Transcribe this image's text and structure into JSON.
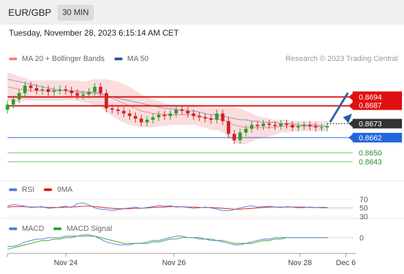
{
  "header": {
    "symbol": "EUR/GBP",
    "timeframe": "30 MIN",
    "datetime": "Tuesday, November 28, 2023 6:15:14 AM CET"
  },
  "price_legend": {
    "items": [
      {
        "label": "MA 20 + Bollinger Bands",
        "color": "#f08a8a"
      },
      {
        "label": "MA 50",
        "color": "#2f5d9a"
      }
    ],
    "credit": "Research © 2023 Trading Central"
  },
  "rsi_legend": {
    "items": [
      {
        "label": "RSI",
        "color": "#5b7fd6"
      },
      {
        "label": "9MA",
        "color": "#e02020"
      }
    ]
  },
  "macd_legend": {
    "items": [
      {
        "label": "MACD",
        "color": "#5b7fd6"
      },
      {
        "label": "MACD Signal",
        "color": "#2eaa2e"
      }
    ]
  },
  "colors": {
    "up_candle": "#2e9e2e",
    "down_candle": "#d42020",
    "resistance": "#e01010",
    "support": "#2266dd",
    "target": "#66c066",
    "current": "#333333",
    "arrow": "#2a5fa8"
  },
  "chart_data": [
    {
      "type": "line",
      "panel": "price",
      "ylim": [
        0.8628,
        0.8718
      ],
      "x_ticks": [
        "Nov 24",
        "Nov 26",
        "Nov 28",
        "Dec 6"
      ],
      "close": [
        0.8688,
        0.8692,
        0.8697,
        0.8703,
        0.8701,
        0.8699,
        0.87,
        0.8698,
        0.8699,
        0.87,
        0.8699,
        0.8697,
        0.8695,
        0.8696,
        0.8698,
        0.8702,
        0.8697,
        0.8685,
        0.8684,
        0.8683,
        0.8681,
        0.8679,
        0.8677,
        0.8674,
        0.8676,
        0.8678,
        0.868,
        0.8679,
        0.8681,
        0.8684,
        0.8683,
        0.8681,
        0.8679,
        0.8678,
        0.8677,
        0.8676,
        0.8681,
        0.8675,
        0.8665,
        0.866,
        0.8666,
        0.8669,
        0.8672,
        0.8671,
        0.8673,
        0.8672,
        0.8671,
        0.8673,
        0.8672,
        0.867,
        0.8671,
        0.8672,
        0.8671,
        0.867,
        0.867,
        0.8671
      ],
      "ma20": [
        0.8702,
        0.8701,
        0.87,
        0.87,
        0.8699,
        0.8699,
        0.8699,
        0.8699,
        0.8699,
        0.8699,
        0.8699,
        0.8699,
        0.8699,
        0.8698,
        0.8698,
        0.8698,
        0.8697,
        0.8695,
        0.8693,
        0.8691,
        0.8689,
        0.8687,
        0.8685,
        0.8683,
        0.8682,
        0.8681,
        0.8681,
        0.868,
        0.868,
        0.868,
        0.868,
        0.868,
        0.868,
        0.8679,
        0.8678,
        0.8677,
        0.8677,
        0.8676,
        0.8674,
        0.8672,
        0.8671,
        0.867,
        0.867,
        0.867,
        0.867,
        0.867,
        0.867,
        0.8671,
        0.8671,
        0.8671,
        0.8671,
        0.8671,
        0.8671,
        0.8671,
        0.8671,
        0.8671
      ],
      "bollinger_halfwidth": [
        0.0011,
        0.0011,
        0.001,
        0.0009,
        0.0008,
        0.0008,
        0.0008,
        0.0008,
        0.0008,
        0.0008,
        0.0008,
        0.0008,
        0.0008,
        0.0008,
        0.0009,
        0.001,
        0.0011,
        0.0013,
        0.0014,
        0.0015,
        0.0015,
        0.0015,
        0.0014,
        0.0013,
        0.0012,
        0.0011,
        0.001,
        0.0009,
        0.0008,
        0.0008,
        0.0008,
        0.0008,
        0.0008,
        0.0008,
        0.0008,
        0.0009,
        0.0009,
        0.001,
        0.0012,
        0.0014,
        0.0014,
        0.0013,
        0.0011,
        0.0009,
        0.0008,
        0.0007,
        0.0006,
        0.0005,
        0.0005,
        0.0004,
        0.0004,
        0.0004,
        0.0004,
        0.0004,
        0.0004,
        0.0004
      ],
      "ma50": [
        0.8708,
        0.8707,
        0.8706,
        0.8705,
        0.8704,
        0.8703,
        0.8702,
        0.8701,
        0.87,
        0.8699,
        0.8699,
        0.8698,
        0.8698,
        0.8697,
        0.8697,
        0.8697,
        0.8696,
        0.8695,
        0.8694,
        0.8693,
        0.8692,
        0.8691,
        0.869,
        0.8689,
        0.8688,
        0.8687,
        0.8686,
        0.8685,
        0.8685,
        0.8684,
        0.8684,
        0.8683,
        0.8683,
        0.8682,
        0.8681,
        0.868,
        0.868,
        0.8679,
        0.8678,
        0.8677,
        0.8676,
        0.8676,
        0.8675,
        0.8675,
        0.8674,
        0.8674,
        0.8674,
        0.8673,
        0.8673,
        0.8673,
        0.8672,
        0.8672,
        0.8672,
        0.8672,
        0.8671,
        0.8671
      ],
      "levels": [
        {
          "label": "0.8694",
          "value": 0.8694,
          "kind": "resistance"
        },
        {
          "label": "0.8687",
          "value": 0.8687,
          "kind": "resistance"
        },
        {
          "label": "0.8673",
          "value": 0.8673,
          "kind": "current"
        },
        {
          "label": "0.8662",
          "value": 0.8662,
          "kind": "support"
        },
        {
          "label": "0.8650",
          "value": 0.865,
          "kind": "target"
        },
        {
          "label": "0.8643",
          "value": 0.8643,
          "kind": "target"
        }
      ]
    },
    {
      "type": "line",
      "panel": "rsi",
      "ylim": [
        20,
        80
      ],
      "levels": [
        30,
        50,
        70
      ],
      "tick_labels": [
        "70",
        "50",
        "30"
      ],
      "rsi": [
        55,
        58,
        56,
        54,
        51,
        52,
        53,
        49,
        50,
        52,
        54,
        51,
        60,
        62,
        57,
        50,
        47,
        46,
        44,
        46,
        48,
        50,
        52,
        49,
        51,
        53,
        56,
        54,
        55,
        52,
        53,
        51,
        49,
        50,
        52,
        50,
        47,
        44,
        43,
        46,
        50,
        53,
        55,
        52,
        53,
        54,
        52,
        51,
        53,
        52,
        50,
        51,
        52,
        51,
        50,
        50
      ],
      "ma9": [
        52,
        53,
        53,
        53,
        52,
        52,
        52,
        51,
        51,
        51,
        52,
        52,
        53,
        54,
        54,
        53,
        52,
        50,
        49,
        48,
        48,
        48,
        49,
        49,
        50,
        51,
        52,
        52,
        53,
        53,
        53,
        52,
        52,
        51,
        51,
        51,
        50,
        49,
        48,
        47,
        47,
        48,
        49,
        50,
        51,
        52,
        52,
        52,
        52,
        52,
        52,
        52,
        51,
        51,
        51,
        51
      ]
    },
    {
      "type": "line",
      "panel": "macd",
      "ylim": [
        -0.001,
        0.0008
      ],
      "tick_labels": [
        "0"
      ],
      "macd": [
        -0.0006,
        -0.0006,
        -0.0005,
        -0.0003,
        -0.0002,
        -0.0001,
        -0.0001,
        0.0,
        0.0,
        0.0,
        0.0001,
        0.0001,
        0.0001,
        0.0002,
        0.0002,
        0.0001,
        -0.0001,
        -0.0003,
        -0.0004,
        -0.0005,
        -0.0005,
        -0.0005,
        -0.0004,
        -0.0004,
        -0.0003,
        -0.0002,
        -0.0002,
        -0.0001,
        0.0,
        0.0001,
        0.0001,
        0.0,
        0.0,
        -0.0001,
        -0.0001,
        -0.0002,
        -0.0002,
        -0.0003,
        -0.0004,
        -0.0005,
        -0.0005,
        -0.0004,
        -0.0003,
        -0.0002,
        -0.0001,
        -0.0001,
        0.0,
        0.0,
        0.0,
        0.0,
        0.0,
        0.0,
        0.0,
        0.0,
        0.0,
        0.0
      ],
      "signal": [
        -0.0008,
        -0.0007,
        -0.0006,
        -0.0005,
        -0.0004,
        -0.0003,
        -0.0002,
        -0.0002,
        -0.0001,
        -0.0001,
        0.0,
        0.0,
        0.0001,
        0.0001,
        0.0001,
        0.0001,
        0.0,
        -0.0001,
        -0.0002,
        -0.0003,
        -0.0004,
        -0.0004,
        -0.0004,
        -0.0004,
        -0.0004,
        -0.0003,
        -0.0003,
        -0.0002,
        -0.0001,
        -0.0001,
        0.0,
        0.0,
        0.0,
        0.0,
        -0.0001,
        -0.0001,
        -0.0002,
        -0.0002,
        -0.0003,
        -0.0004,
        -0.0004,
        -0.0004,
        -0.0004,
        -0.0003,
        -0.0002,
        -0.0002,
        -0.0001,
        -0.0001,
        0.0,
        0.0,
        0.0,
        0.0,
        0.0,
        0.0,
        0.0,
        0.0
      ]
    }
  ]
}
